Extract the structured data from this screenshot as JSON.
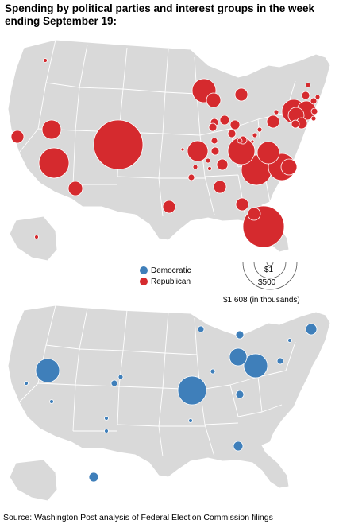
{
  "title": "Spending by political parties and interest groups in the week ending September 19:",
  "legend": {
    "democratic_label": "Democratic",
    "republican_label": "Republican",
    "democratic_color": "#3f7fba",
    "republican_color": "#d52a2e"
  },
  "scale": {
    "small_label": "$1",
    "mid_label": "$500",
    "large_label": "$1,608 (in thousands)"
  },
  "source": "Source: Washington Post analysis of Federal Election Commission filings",
  "chart_data": {
    "type": "map",
    "units": "thousands of dollars",
    "legend_placement": "center",
    "series": [
      {
        "name": "Republican",
        "color": "#d52a2e",
        "bubble_count": 52,
        "largest_bubble_value": 1608
      },
      {
        "name": "Democratic",
        "color": "#3f7fba",
        "bubble_count": 20
      }
    ]
  }
}
